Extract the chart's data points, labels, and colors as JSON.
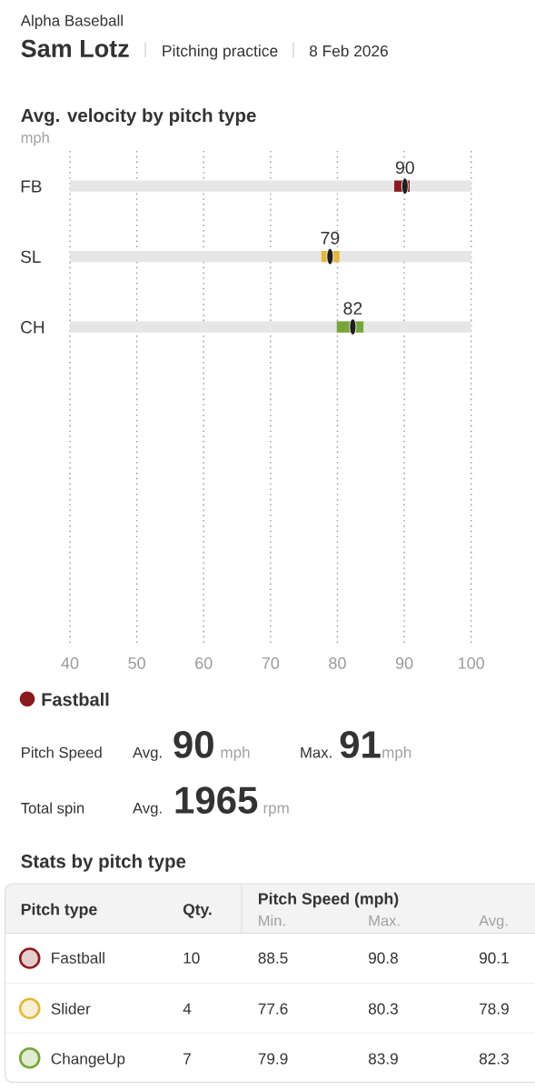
{
  "chart_data": {
    "type": "bar",
    "orientation": "horizontal",
    "title": "Avg. velocity by pitch type",
    "subtitle": "mph",
    "categories": [
      "FB",
      "SL",
      "CH",
      null,
      null,
      null,
      null
    ],
    "xlim": [
      40,
      100
    ],
    "xticks": [
      40,
      50,
      60,
      70,
      80,
      90,
      100
    ],
    "grid": "x",
    "series": [
      {
        "color": "#e6e6e6",
        "base": [
          40,
          40,
          40,
          null,
          null,
          null,
          null
        ],
        "values": [
          60,
          60,
          60,
          null,
          null,
          null,
          null
        ]
      },
      {
        "colors": [
          "#8b1a1e",
          "#e2b83c",
          "#75a538",
          null,
          null,
          null,
          null
        ],
        "base": [
          88.5,
          77.6,
          79.9,
          null,
          null,
          null,
          null
        ],
        "values": [
          2.3,
          2.7,
          4.0,
          null,
          null,
          null,
          null
        ]
      },
      {
        "type": "scatter",
        "color": "#1e1e1e",
        "values": [
          90.1,
          78.9,
          82.3,
          null,
          null,
          null,
          null
        ],
        "value_labels": [
          "90",
          "79",
          "82",
          null,
          null,
          null,
          null
        ]
      }
    ],
    "annotations": [
      "Alpha Baseball",
      "Sam Lotz",
      "Pitching practice",
      "8 Feb 2026",
      "Fastball",
      "Pitch Speed",
      "Avg.",
      "90",
      "mph",
      "Max.",
      "91",
      "mph",
      "Total spin",
      "Avg.",
      "1965",
      "rpm",
      "Stats by pitch type",
      "Pitch type",
      "Qty.",
      "Pitch Speed (mph)",
      "Min.",
      "Max.",
      "Avg.",
      "Fastball",
      "10",
      "88.5",
      "90.8",
      "90.1",
      "Slider",
      "4",
      "77.6",
      "80.3",
      "78.9",
      "ChangeUp",
      "7",
      "79.9",
      "83.9",
      "82.3"
    ]
  }
}
